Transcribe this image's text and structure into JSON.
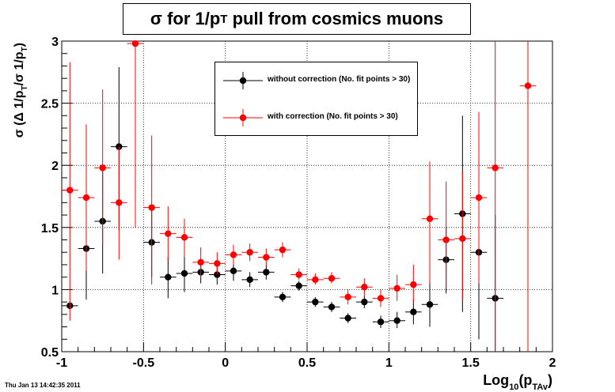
{
  "chart_data": {
    "type": "scatter",
    "title": "σ for 1/p",
    "title_sub": "T",
    "title_rest": " pull from cosmics muons",
    "xlabel": "Log",
    "xlabel_sub1": "10",
    "xlabel_mid": "(p",
    "xlabel_sub2": "TAv",
    "xlabel_end": ")",
    "ylabel": "σ (Δ 1/p",
    "ylabel_sub1": "T",
    "ylabel_mid": "/σ 1/p",
    "ylabel_sub2": "T",
    "ylabel_end": ")",
    "xlim": [
      -1,
      2
    ],
    "ylim": [
      0.5,
      3
    ],
    "grid": true,
    "xticks": [
      -1,
      -0.5,
      0,
      0.5,
      1,
      1.5,
      2
    ],
    "xtick_labels": [
      "-1",
      "-0.5",
      "0",
      "0.5",
      "1",
      "1.5",
      "2"
    ],
    "yticks": [
      0.5,
      1,
      1.5,
      2,
      2.5,
      3
    ],
    "ytick_labels": [
      "0.5",
      "1",
      "1.5",
      "2",
      "2.5",
      "3"
    ],
    "legend_position": "top-center",
    "series": [
      {
        "name": "without correction (No. fit points > 30)",
        "color": "#000000",
        "points": [
          {
            "x": -0.95,
            "y": 0.87,
            "yerr_low": 0.87,
            "yerr_high": 0.87
          },
          {
            "x": -0.85,
            "y": 1.33,
            "yerr_low": 0.92,
            "yerr_high": 1.72
          },
          {
            "x": -0.75,
            "y": 1.55,
            "yerr_low": 1.13,
            "yerr_high": 1.98
          },
          {
            "x": -0.65,
            "y": 2.15,
            "yerr_low": 1.48,
            "yerr_high": 2.79
          },
          {
            "x": -0.45,
            "y": 1.38,
            "yerr_low": 1.1,
            "yerr_high": 1.66
          },
          {
            "x": -0.35,
            "y": 1.1,
            "yerr_low": 0.93,
            "yerr_high": 1.26
          },
          {
            "x": -0.25,
            "y": 1.13,
            "yerr_low": 0.98,
            "yerr_high": 1.26
          },
          {
            "x": -0.15,
            "y": 1.14,
            "yerr_low": 1.05,
            "yerr_high": 1.24
          },
          {
            "x": -0.05,
            "y": 1.12,
            "yerr_low": 1.04,
            "yerr_high": 1.2
          },
          {
            "x": 0.05,
            "y": 1.15,
            "yerr_low": 1.07,
            "yerr_high": 1.22
          },
          {
            "x": 0.15,
            "y": 1.08,
            "yerr_low": 1.02,
            "yerr_high": 1.14
          },
          {
            "x": 0.25,
            "y": 1.14,
            "yerr_low": 1.08,
            "yerr_high": 1.2
          },
          {
            "x": 0.35,
            "y": 0.94,
            "yerr_low": 0.9,
            "yerr_high": 0.98
          },
          {
            "x": 0.45,
            "y": 1.03,
            "yerr_low": 0.99,
            "yerr_high": 1.07
          },
          {
            "x": 0.55,
            "y": 0.9,
            "yerr_low": 0.86,
            "yerr_high": 0.94
          },
          {
            "x": 0.65,
            "y": 0.86,
            "yerr_low": 0.82,
            "yerr_high": 0.9
          },
          {
            "x": 0.75,
            "y": 0.77,
            "yerr_low": 0.73,
            "yerr_high": 0.81
          },
          {
            "x": 0.85,
            "y": 0.9,
            "yerr_low": 0.85,
            "yerr_high": 0.95
          },
          {
            "x": 0.95,
            "y": 0.74,
            "yerr_low": 0.69,
            "yerr_high": 0.79
          },
          {
            "x": 1.05,
            "y": 0.75,
            "yerr_low": 0.69,
            "yerr_high": 0.82
          },
          {
            "x": 1.15,
            "y": 0.82,
            "yerr_low": 0.72,
            "yerr_high": 0.92
          },
          {
            "x": 1.25,
            "y": 0.88,
            "yerr_low": 0.7,
            "yerr_high": 1.06
          },
          {
            "x": 1.35,
            "y": 1.24,
            "yerr_low": 0.97,
            "yerr_high": 1.5
          },
          {
            "x": 1.45,
            "y": 1.61,
            "yerr_low": 0.82,
            "yerr_high": 2.4
          },
          {
            "x": 1.55,
            "y": 1.3,
            "yerr_low": 0.6,
            "yerr_high": 2.0
          },
          {
            "x": 1.65,
            "y": 0.93,
            "yerr_low": 0.5,
            "yerr_high": 1.6
          }
        ]
      },
      {
        "name": "with correction (No. fit points > 30)",
        "color": "#ff0000",
        "points": [
          {
            "x": -0.95,
            "y": 1.8,
            "yerr_low": 0.75,
            "yerr_high": 2.83
          },
          {
            "x": -0.85,
            "y": 1.74,
            "yerr_low": 1.15,
            "yerr_high": 2.33
          },
          {
            "x": -0.75,
            "y": 1.98,
            "yerr_low": 1.36,
            "yerr_high": 2.61
          },
          {
            "x": -0.65,
            "y": 1.7,
            "yerr_low": 1.24,
            "yerr_high": 2.15
          },
          {
            "x": -0.55,
            "y": 2.98,
            "yerr_low": 1.5,
            "yerr_high": 3.0
          },
          {
            "x": -0.45,
            "y": 1.66,
            "yerr_low": 1.04,
            "yerr_high": 2.24
          },
          {
            "x": -0.35,
            "y": 1.45,
            "yerr_low": 1.23,
            "yerr_high": 1.67
          },
          {
            "x": -0.25,
            "y": 1.42,
            "yerr_low": 1.26,
            "yerr_high": 1.57
          },
          {
            "x": -0.15,
            "y": 1.22,
            "yerr_low": 1.1,
            "yerr_high": 1.34
          },
          {
            "x": -0.05,
            "y": 1.21,
            "yerr_low": 1.12,
            "yerr_high": 1.3
          },
          {
            "x": 0.05,
            "y": 1.28,
            "yerr_low": 1.2,
            "yerr_high": 1.36
          },
          {
            "x": 0.15,
            "y": 1.3,
            "yerr_low": 1.23,
            "yerr_high": 1.37
          },
          {
            "x": 0.25,
            "y": 1.26,
            "yerr_low": 1.19,
            "yerr_high": 1.33
          },
          {
            "x": 0.35,
            "y": 1.32,
            "yerr_low": 1.26,
            "yerr_high": 1.38
          },
          {
            "x": 0.45,
            "y": 1.12,
            "yerr_low": 1.08,
            "yerr_high": 1.17
          },
          {
            "x": 0.55,
            "y": 1.08,
            "yerr_low": 1.04,
            "yerr_high": 1.13
          },
          {
            "x": 0.65,
            "y": 1.09,
            "yerr_low": 1.05,
            "yerr_high": 1.14
          },
          {
            "x": 0.75,
            "y": 0.94,
            "yerr_low": 0.88,
            "yerr_high": 1.0
          },
          {
            "x": 0.85,
            "y": 1.02,
            "yerr_low": 0.95,
            "yerr_high": 1.09
          },
          {
            "x": 0.95,
            "y": 0.93,
            "yerr_low": 0.86,
            "yerr_high": 1.0
          },
          {
            "x": 1.05,
            "y": 1.01,
            "yerr_low": 0.91,
            "yerr_high": 1.12
          },
          {
            "x": 1.15,
            "y": 1.04,
            "yerr_low": 0.9,
            "yerr_high": 1.2
          },
          {
            "x": 1.25,
            "y": 1.57,
            "yerr_low": 1.05,
            "yerr_high": 2.03
          },
          {
            "x": 1.35,
            "y": 1.4,
            "yerr_low": 1.02,
            "yerr_high": 1.87
          },
          {
            "x": 1.45,
            "y": 1.41,
            "yerr_low": 0.92,
            "yerr_high": 1.95
          },
          {
            "x": 1.55,
            "y": 1.74,
            "yerr_low": 1.05,
            "yerr_high": 2.43
          },
          {
            "x": 1.65,
            "y": 1.98,
            "yerr_low": 0.5,
            "yerr_high": 3.0
          },
          {
            "x": 1.85,
            "y": 2.64,
            "yerr_low": 0.5,
            "yerr_high": 3.0
          }
        ]
      }
    ]
  },
  "footer": {
    "timestamp": "Thu Jan 13 14:42:35 2011"
  }
}
